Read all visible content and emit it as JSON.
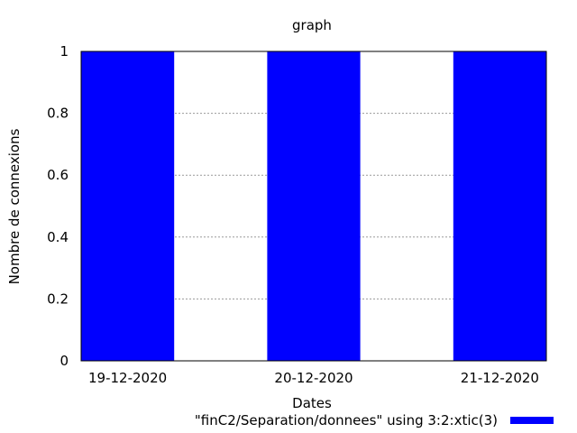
{
  "chart_data": {
    "type": "bar",
    "title": "graph",
    "xlabel": "Dates",
    "ylabel": "Nombre de connexions",
    "categories": [
      "19-12-2020",
      "20-12-2020",
      "21-12-2020"
    ],
    "series": [
      {
        "name": "\"finC2/Separation/donnees\" using 3:2:xtic(3)",
        "values": [
          1,
          1,
          1
        ]
      }
    ],
    "ylim": [
      0,
      1
    ],
    "yticks": [
      "0",
      "0.2",
      "0.4",
      "0.6",
      "0.8",
      "1"
    ],
    "grid": "horizontal dotted",
    "legend_position": "bottom-right",
    "bar_color": "#0000ff"
  }
}
